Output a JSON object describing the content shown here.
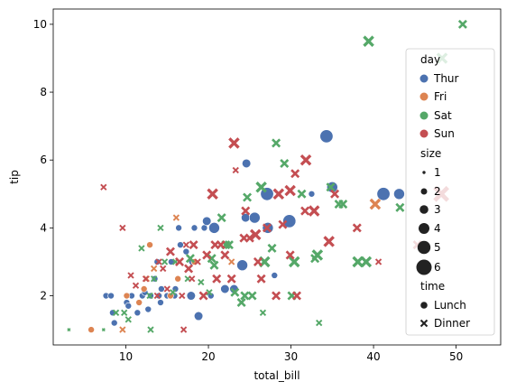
{
  "chart_data": {
    "type": "scatter",
    "xlabel": "total_bill",
    "ylabel": "tip",
    "xlim": [
      1.2,
      55.4
    ],
    "ylim": [
      0.55,
      10.45
    ],
    "xticks": [
      10,
      20,
      30,
      40,
      50
    ],
    "yticks": [
      2,
      4,
      6,
      8,
      10
    ],
    "grid": false,
    "legend_position": "right",
    "hue": {
      "title": "day",
      "levels": [
        {
          "name": "Thur",
          "color": "#4c72b0"
        },
        {
          "name": "Fri",
          "color": "#dd8452"
        },
        {
          "name": "Sat",
          "color": "#55a868"
        },
        {
          "name": "Sun",
          "color": "#c44e52"
        }
      ]
    },
    "size": {
      "title": "size",
      "levels": [
        "1",
        "2",
        "3",
        "4",
        "5",
        "6"
      ]
    },
    "style": {
      "title": "time",
      "levels": [
        {
          "name": "Lunch",
          "marker": "circle"
        },
        {
          "name": "Dinner",
          "marker": "x"
        }
      ]
    },
    "points": [
      [
        7.6,
        2.0,
        0,
        2,
        0
      ],
      [
        8.4,
        1.5,
        0,
        2,
        0
      ],
      [
        8.6,
        1.2,
        0,
        2,
        0
      ],
      [
        10.1,
        1.8,
        0,
        2,
        0
      ],
      [
        10.3,
        1.7,
        0,
        2,
        0
      ],
      [
        10.7,
        2.0,
        0,
        2,
        0
      ],
      [
        11.4,
        1.5,
        0,
        2,
        0
      ],
      [
        11.6,
        1.8,
        0,
        2,
        0
      ],
      [
        12.0,
        2.0,
        0,
        2,
        0
      ],
      [
        12.3,
        2.1,
        0,
        2,
        0
      ],
      [
        12.7,
        1.6,
        0,
        2,
        0
      ],
      [
        13.0,
        2.0,
        0,
        2,
        0
      ],
      [
        13.5,
        2.5,
        0,
        2,
        0
      ],
      [
        14.0,
        2.0,
        0,
        2,
        0
      ],
      [
        14.3,
        2.2,
        0,
        2,
        0
      ],
      [
        15.0,
        2.0,
        0,
        2,
        0
      ],
      [
        15.5,
        3.0,
        0,
        2,
        0
      ],
      [
        16.0,
        2.2,
        0,
        2,
        0
      ],
      [
        16.3,
        2.5,
        0,
        2,
        0
      ],
      [
        16.6,
        3.5,
        0,
        2,
        0
      ],
      [
        17.3,
        3.3,
        0,
        2,
        0
      ],
      [
        18.0,
        3.0,
        0,
        2,
        0
      ],
      [
        18.3,
        4.0,
        0,
        2,
        0
      ],
      [
        19.5,
        4.0,
        0,
        2,
        0
      ],
      [
        20.3,
        2.0,
        0,
        2,
        0
      ],
      [
        24.5,
        4.3,
        0,
        3,
        0
      ],
      [
        25.6,
        4.3,
        0,
        4,
        0
      ],
      [
        28.0,
        2.6,
        0,
        2,
        0
      ],
      [
        32.5,
        5.0,
        0,
        2,
        0
      ],
      [
        13.8,
        3.0,
        0,
        2,
        0
      ],
      [
        15.9,
        2.0,
        0,
        2,
        0
      ],
      [
        17.9,
        2.0,
        0,
        3,
        0
      ],
      [
        18.8,
        1.4,
        0,
        3,
        0
      ],
      [
        22.0,
        2.2,
        0,
        3,
        0
      ],
      [
        23.1,
        2.2,
        0,
        3,
        0
      ],
      [
        24.1,
        2.9,
        0,
        4,
        0
      ],
      [
        27.2,
        4.0,
        0,
        4,
        0
      ],
      [
        27.1,
        5.0,
        0,
        5,
        0
      ],
      [
        29.8,
        4.2,
        0,
        5,
        0
      ],
      [
        34.3,
        6.7,
        0,
        5,
        0
      ],
      [
        35.0,
        5.2,
        0,
        4,
        0
      ],
      [
        41.2,
        5.0,
        0,
        5,
        0
      ],
      [
        43.1,
        5.0,
        0,
        4,
        0
      ],
      [
        16.4,
        4.0,
        0,
        2,
        0
      ],
      [
        19.8,
        4.2,
        0,
        3,
        0
      ],
      [
        24.6,
        5.9,
        0,
        3,
        0
      ],
      [
        12.7,
        1.6,
        0,
        2,
        0
      ],
      [
        14.2,
        1.8,
        0,
        2,
        0
      ],
      [
        20.7,
        4.0,
        0,
        4,
        0
      ],
      [
        8.2,
        2.0,
        0,
        2,
        0
      ],
      [
        5.8,
        1.0,
        1,
        2,
        0
      ],
      [
        10.1,
        2.0,
        1,
        2,
        0
      ],
      [
        12.9,
        3.5,
        1,
        2,
        0
      ],
      [
        12.2,
        2.2,
        1,
        2,
        0
      ],
      [
        11.6,
        1.8,
        1,
        2,
        0
      ],
      [
        16.3,
        2.5,
        1,
        2,
        0
      ],
      [
        15.4,
        2.0,
        1,
        2,
        0
      ],
      [
        18.3,
        3.0,
        1,
        2,
        0
      ],
      [
        16.1,
        4.3,
        1,
        2,
        1
      ],
      [
        40.2,
        4.7,
        1,
        4,
        1
      ],
      [
        22.8,
        3.0,
        1,
        2,
        1
      ],
      [
        12.5,
        2.5,
        1,
        2,
        1
      ],
      [
        9.6,
        1.0,
        1,
        2,
        1
      ],
      [
        13.4,
        2.8,
        1,
        2,
        1
      ],
      [
        3.1,
        1.0,
        2,
        1,
        1
      ],
      [
        7.3,
        1.0,
        2,
        1,
        1
      ],
      [
        50.8,
        10.0,
        2,
        3,
        1
      ],
      [
        48.3,
        9.0,
        2,
        4,
        1
      ],
      [
        39.4,
        9.5,
        2,
        4,
        1
      ],
      [
        28.2,
        6.5,
        2,
        3,
        1
      ],
      [
        26.4,
        5.2,
        2,
        4,
        1
      ],
      [
        29.2,
        5.9,
        2,
        3,
        1
      ],
      [
        31.3,
        5.0,
        2,
        3,
        1
      ],
      [
        34.8,
        5.2,
        2,
        3,
        1
      ],
      [
        35.8,
        4.7,
        2,
        3,
        1
      ],
      [
        43.2,
        4.6,
        2,
        3,
        1
      ],
      [
        38.1,
        3.0,
        2,
        4,
        1
      ],
      [
        39.1,
        3.0,
        2,
        4,
        1
      ],
      [
        33.2,
        3.2,
        2,
        4,
        1
      ],
      [
        30.4,
        3.0,
        2,
        4,
        1
      ],
      [
        26.8,
        3.0,
        2,
        4,
        1
      ],
      [
        25.3,
        2.0,
        2,
        3,
        1
      ],
      [
        24.4,
        2.0,
        2,
        3,
        1
      ],
      [
        24.0,
        1.8,
        2,
        3,
        1
      ],
      [
        23.2,
        2.1,
        2,
        3,
        1
      ],
      [
        20.7,
        2.9,
        2,
        3,
        1
      ],
      [
        20.4,
        3.1,
        2,
        3,
        1
      ],
      [
        17.8,
        3.1,
        2,
        3,
        1
      ],
      [
        16.0,
        3.0,
        2,
        2,
        1
      ],
      [
        15.7,
        2.1,
        2,
        2,
        1
      ],
      [
        14.7,
        3.0,
        2,
        2,
        1
      ],
      [
        13.4,
        2.5,
        2,
        2,
        1
      ],
      [
        12.9,
        2.0,
        2,
        2,
        1
      ],
      [
        10.3,
        1.3,
        2,
        2,
        1
      ],
      [
        9.8,
        1.5,
        2,
        2,
        1
      ],
      [
        8.8,
        1.5,
        2,
        2,
        1
      ],
      [
        13.0,
        1.0,
        2,
        2,
        1
      ],
      [
        14.2,
        4.0,
        2,
        2,
        1
      ],
      [
        11.9,
        3.4,
        2,
        2,
        1
      ],
      [
        21.6,
        4.3,
        2,
        3,
        1
      ],
      [
        24.7,
        4.9,
        2,
        3,
        1
      ],
      [
        27.7,
        3.4,
        2,
        3,
        1
      ],
      [
        30.1,
        2.0,
        2,
        3,
        1
      ],
      [
        32.9,
        3.1,
        2,
        3,
        1
      ],
      [
        26.6,
        1.5,
        2,
        2,
        1
      ],
      [
        33.4,
        1.2,
        2,
        2,
        1
      ],
      [
        22.1,
        3.5,
        2,
        3,
        1
      ],
      [
        20.1,
        2.1,
        2,
        2,
        1
      ],
      [
        19.1,
        2.4,
        2,
        2,
        1
      ],
      [
        17.5,
        2.5,
        2,
        2,
        1
      ],
      [
        36.3,
        4.7,
        2,
        3,
        1
      ],
      [
        22.5,
        3.5,
        2,
        3,
        1
      ],
      [
        23.1,
        6.5,
        3,
        4,
        1
      ],
      [
        24.5,
        4.5,
        3,
        3,
        1
      ],
      [
        25.7,
        3.8,
        3,
        4,
        1
      ],
      [
        29.9,
        5.1,
        3,
        4,
        1
      ],
      [
        31.8,
        6.0,
        3,
        4,
        1
      ],
      [
        32.8,
        4.5,
        3,
        4,
        1
      ],
      [
        30.5,
        5.6,
        3,
        3,
        1
      ],
      [
        34.6,
        3.6,
        3,
        4,
        1
      ],
      [
        35.3,
        5.0,
        3,
        3,
        1
      ],
      [
        38.0,
        4.0,
        3,
        3,
        1
      ],
      [
        40.6,
        3.0,
        3,
        2,
        1
      ],
      [
        48.2,
        5.0,
        3,
        6,
        1
      ],
      [
        45.3,
        3.5,
        3,
        3,
        1
      ],
      [
        7.3,
        5.2,
        3,
        2,
        1
      ],
      [
        9.6,
        4.0,
        3,
        2,
        1
      ],
      [
        10.6,
        2.6,
        3,
        2,
        1
      ],
      [
        11.2,
        2.3,
        3,
        2,
        1
      ],
      [
        12.4,
        2.5,
        3,
        2,
        1
      ],
      [
        13.8,
        2.0,
        3,
        2,
        1
      ],
      [
        14.5,
        2.8,
        3,
        2,
        1
      ],
      [
        15.0,
        2.2,
        3,
        2,
        1
      ],
      [
        16.8,
        2.0,
        3,
        2,
        1
      ],
      [
        17.3,
        3.5,
        3,
        2,
        1
      ],
      [
        17.6,
        2.8,
        3,
        3,
        1
      ],
      [
        18.2,
        3.5,
        3,
        3,
        1
      ],
      [
        18.7,
        3.0,
        3,
        2,
        1
      ],
      [
        19.4,
        2.0,
        3,
        3,
        1
      ],
      [
        19.8,
        3.2,
        3,
        3,
        1
      ],
      [
        20.5,
        5.0,
        3,
        4,
        1
      ],
      [
        20.8,
        3.5,
        3,
        3,
        1
      ],
      [
        21.5,
        3.5,
        3,
        3,
        1
      ],
      [
        22.0,
        3.2,
        3,
        3,
        1
      ],
      [
        22.8,
        2.5,
        3,
        3,
        1
      ],
      [
        23.3,
        5.7,
        3,
        2,
        1
      ],
      [
        24.3,
        3.7,
        3,
        3,
        1
      ],
      [
        25.0,
        3.7,
        3,
        3,
        1
      ],
      [
        26.0,
        3.0,
        3,
        3,
        1
      ],
      [
        27.1,
        4.0,
        3,
        3,
        1
      ],
      [
        28.2,
        2.0,
        3,
        3,
        1
      ],
      [
        28.5,
        5.0,
        3,
        4,
        1
      ],
      [
        29.0,
        4.1,
        3,
        3,
        1
      ],
      [
        29.9,
        3.2,
        3,
        3,
        1
      ],
      [
        30.7,
        2.0,
        3,
        3,
        1
      ],
      [
        31.7,
        4.5,
        3,
        3,
        1
      ],
      [
        15.4,
        3.3,
        3,
        3,
        1
      ],
      [
        16.5,
        3.0,
        3,
        3,
        1
      ],
      [
        18.0,
        2.5,
        3,
        2,
        1
      ],
      [
        21.0,
        2.5,
        3,
        3,
        1
      ],
      [
        26.4,
        2.5,
        3,
        3,
        1
      ],
      [
        14.0,
        3.0,
        3,
        2,
        1
      ],
      [
        17.0,
        1.0,
        3,
        2,
        1
      ]
    ]
  }
}
